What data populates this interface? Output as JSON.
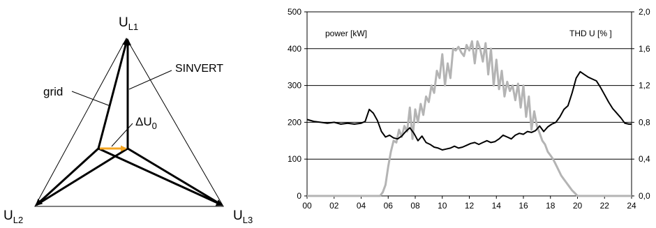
{
  "phasor_diagram": {
    "labels": {
      "top": {
        "main": "U",
        "sub": "L1"
      },
      "left": {
        "main": "U",
        "sub": "L2"
      },
      "right": {
        "main": "U",
        "sub": "L3"
      },
      "grid": "grid",
      "sinvert": "SINVERT",
      "delta": {
        "main": "ΔU",
        "sub": "0"
      }
    },
    "colors": {
      "lines": "#000000",
      "offset_arrow": "#f5a623"
    }
  },
  "chart_data": {
    "type": "line",
    "annotations": {
      "left": "power [kW]",
      "right": "THD U [% ]"
    },
    "x_ticks": [
      "00",
      "02",
      "04",
      "06",
      "08",
      "10",
      "12",
      "14",
      "16",
      "18",
      "20",
      "22",
      "24"
    ],
    "xlim": [
      0,
      24
    ],
    "ylim": [
      0,
      500
    ],
    "y_ticks": [
      "0",
      "100",
      "200",
      "300",
      "400",
      "500"
    ],
    "y2lim": [
      0,
      2.0
    ],
    "y2_ticks": [
      "0,0",
      "0,4",
      "0,8",
      "1,2",
      "1,6",
      "2,0"
    ],
    "grid": "horizontal",
    "series": [
      {
        "axis": "right",
        "color": "#000000",
        "x": [
          0,
          0.5,
          1,
          1.5,
          2,
          2.5,
          3,
          3.5,
          4,
          4.3,
          4.6,
          4.9,
          5.2,
          5.5,
          5.8,
          6.1,
          6.4,
          6.7,
          7.0,
          7.3,
          7.6,
          7.9,
          8.2,
          8.5,
          8.8,
          9.1,
          9.4,
          9.7,
          10.0,
          10.3,
          10.6,
          10.9,
          11.2,
          11.5,
          11.8,
          12.1,
          12.4,
          12.7,
          13.0,
          13.3,
          13.6,
          13.9,
          14.2,
          14.5,
          14.8,
          15.1,
          15.4,
          15.7,
          16.0,
          16.3,
          16.6,
          16.9,
          17.2,
          17.5,
          17.8,
          18.1,
          18.4,
          18.7,
          19.0,
          19.3,
          19.6,
          19.9,
          20.2,
          20.5,
          20.8,
          21.1,
          21.4,
          21.7,
          22.0,
          22.3,
          22.6,
          22.9,
          23.2,
          23.5,
          23.8,
          24.0
        ],
        "y": [
          0.83,
          0.81,
          0.8,
          0.79,
          0.8,
          0.78,
          0.79,
          0.78,
          0.79,
          0.81,
          0.94,
          0.9,
          0.82,
          0.7,
          0.64,
          0.66,
          0.63,
          0.62,
          0.65,
          0.7,
          0.74,
          0.68,
          0.6,
          0.65,
          0.58,
          0.56,
          0.53,
          0.52,
          0.5,
          0.51,
          0.52,
          0.54,
          0.52,
          0.53,
          0.55,
          0.57,
          0.58,
          0.56,
          0.58,
          0.6,
          0.58,
          0.59,
          0.62,
          0.66,
          0.64,
          0.62,
          0.66,
          0.68,
          0.67,
          0.7,
          0.69,
          0.71,
          0.76,
          0.7,
          0.75,
          0.78,
          0.8,
          0.86,
          0.94,
          0.98,
          1.12,
          1.28,
          1.35,
          1.32,
          1.29,
          1.27,
          1.25,
          1.18,
          1.1,
          1.02,
          0.95,
          0.9,
          0.85,
          0.79,
          0.78,
          0.78
        ]
      },
      {
        "axis": "left",
        "color": "#b4b4b4",
        "x": [
          0,
          1,
          2,
          3,
          4,
          5,
          5.4,
          5.6,
          5.8,
          6.0,
          6.2,
          6.4,
          6.6,
          6.8,
          7.0,
          7.2,
          7.4,
          7.6,
          7.8,
          8.0,
          8.2,
          8.4,
          8.6,
          8.8,
          9.0,
          9.2,
          9.4,
          9.6,
          9.8,
          10.0,
          10.2,
          10.4,
          10.6,
          10.8,
          11.0,
          11.2,
          11.4,
          11.6,
          11.8,
          12.0,
          12.2,
          12.4,
          12.6,
          12.8,
          13.0,
          13.2,
          13.4,
          13.6,
          13.8,
          14.0,
          14.2,
          14.4,
          14.6,
          14.8,
          15.0,
          15.2,
          15.4,
          15.6,
          15.8,
          16.0,
          16.2,
          16.4,
          16.6,
          16.8,
          17.0,
          17.2,
          17.4,
          17.6,
          17.8,
          18.0,
          18.2,
          18.4,
          18.6,
          18.8,
          19.0,
          19.2,
          19.4,
          19.6,
          19.8,
          20.0,
          21,
          22,
          23,
          24
        ],
        "y": [
          0,
          0,
          0,
          0,
          0,
          0,
          0,
          10,
          30,
          80,
          120,
          150,
          145,
          180,
          160,
          190,
          175,
          240,
          155,
          235,
          200,
          250,
          220,
          270,
          255,
          300,
          280,
          340,
          320,
          385,
          300,
          360,
          320,
          400,
          395,
          405,
          390,
          380,
          410,
          395,
          420,
          360,
          420,
          400,
          365,
          415,
          330,
          400,
          300,
          370,
          290,
          340,
          270,
          310,
          285,
          300,
          260,
          305,
          240,
          300,
          215,
          270,
          180,
          230,
          190,
          170,
          150,
          140,
          120,
          110,
          100,
          85,
          70,
          55,
          45,
          35,
          25,
          15,
          8,
          0,
          0,
          0,
          0,
          0
        ]
      }
    ]
  }
}
